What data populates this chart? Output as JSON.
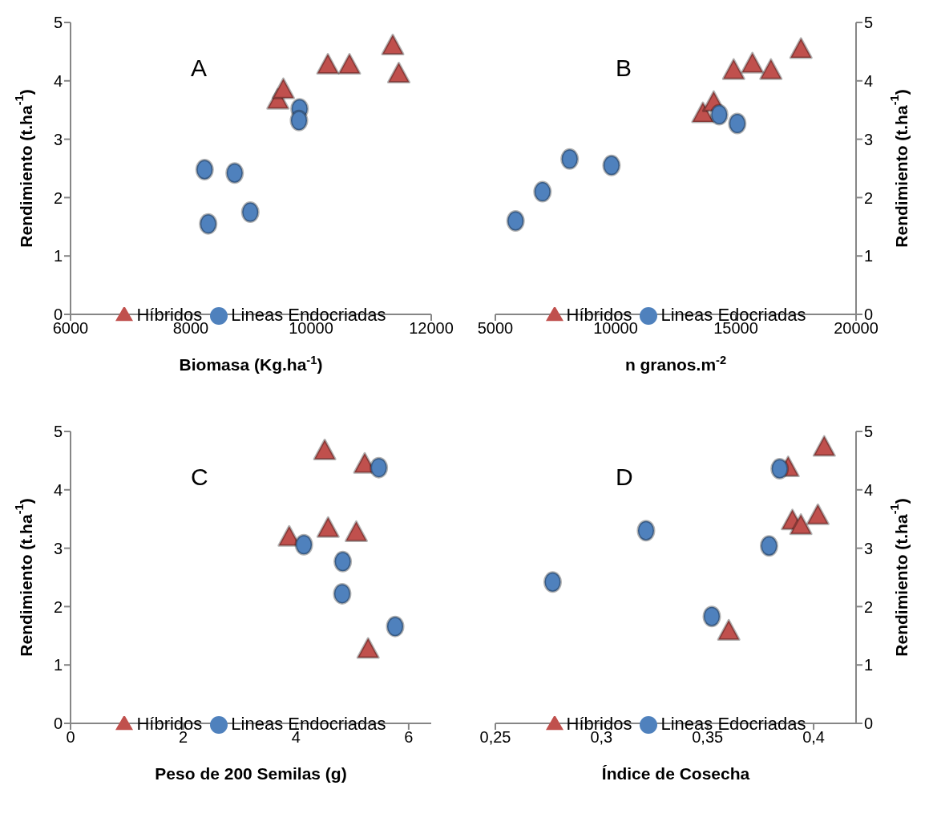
{
  "chart_data": [
    {
      "type": "scatter",
      "annotations": [
        "A"
      ],
      "xlabel": "Biomasa (Kg.ha$^{-1}$)",
      "ylabel": "Rendimiento (t.ha$^{-1}$)",
      "xlim": [
        6000,
        12000
      ],
      "xticks": [
        6000,
        8000,
        10000,
        12000
      ],
      "ylim": [
        0,
        5
      ],
      "yticks": [
        0,
        1,
        2,
        3,
        4,
        5
      ],
      "legend": "bottom",
      "series": [
        {
          "name": "Híbridos",
          "color": "#c0504d",
          "marker": "triangle",
          "x": [
            9450,
            9540,
            10280,
            10640,
            11360,
            11460
          ],
          "values": [
            3.65,
            3.83,
            4.25,
            4.25,
            4.58,
            4.1
          ]
        },
        {
          "name": "Lineas Endocriadas",
          "color": "#4f81bd",
          "marker": "circle",
          "x": [
            8230,
            8730,
            8290,
            8990,
            9810,
            9800
          ],
          "values": [
            2.48,
            2.42,
            1.55,
            1.75,
            3.52,
            3.32
          ]
        }
      ]
    },
    {
      "type": "scatter",
      "annotations": [
        "B"
      ],
      "xlabel": "n granos.m$^{-2}$",
      "y2label": "Rendimiento (t.ha$^{-1}$)",
      "xlim": [
        5000,
        20000
      ],
      "xticks": [
        5000,
        10000,
        15000,
        20000
      ],
      "y2lim": [
        0,
        5
      ],
      "y2ticks": [
        0,
        1,
        2,
        3,
        4,
        5
      ],
      "legend": "bottom",
      "series": [
        {
          "name": "Híbridos",
          "color": "#c0504d",
          "marker": "triangle",
          "axis": "y2",
          "x": [
            13630,
            14080,
            14910,
            15690,
            16460,
            17710
          ],
          "values": [
            3.42,
            3.61,
            4.16,
            4.27,
            4.16,
            4.52
          ]
        },
        {
          "name": "Lineas Edocriadas",
          "color": "#4f81bd",
          "marker": "circle",
          "axis": "y2",
          "x": [
            5840,
            6960,
            8090,
            9830,
            14310,
            15060
          ],
          "values": [
            1.6,
            2.1,
            2.66,
            2.55,
            3.42,
            3.27
          ]
        }
      ]
    },
    {
      "type": "scatter",
      "annotations": [
        "C"
      ],
      "xlabel": "Peso de 200 Semilas (g)",
      "ylabel": "Rendimiento (t.ha$^{-1}$)",
      "xlim": [
        0,
        6.4
      ],
      "xticks": [
        0,
        2,
        4,
        6
      ],
      "ylim": [
        0,
        5
      ],
      "yticks": [
        0,
        1,
        2,
        3,
        4,
        5
      ],
      "legend": "bottom",
      "series": [
        {
          "name": "Híbridos",
          "color": "#c0504d",
          "marker": "triangle",
          "x": [
            4.51,
            5.22,
            3.88,
            4.57,
            5.07,
            5.28
          ],
          "values": [
            4.65,
            4.42,
            3.17,
            3.32,
            3.25,
            1.25
          ]
        },
        {
          "name": "Lineas Endocriadas",
          "color": "#4f81bd",
          "marker": "circle",
          "x": [
            5.47,
            4.14,
            4.83,
            4.82,
            5.76
          ],
          "values": [
            4.38,
            3.06,
            2.77,
            2.22,
            1.66
          ]
        }
      ]
    },
    {
      "type": "scatter",
      "annotations": [
        "D"
      ],
      "xlabel": "Índice de Cosecha",
      "y2label": "Rendimiento (t.ha$^{-1}$)",
      "xlim": [
        0.25,
        0.42
      ],
      "xticks": [
        {
          "value": 0.25,
          "label": "0,25"
        },
        {
          "value": 0.3,
          "label": "0,3"
        },
        {
          "value": 0.35,
          "label": "0,35"
        },
        {
          "value": 0.4,
          "label": "0,4"
        }
      ],
      "y2lim": [
        0,
        5
      ],
      "y2ticks": [
        0,
        1,
        2,
        3,
        4,
        5
      ],
      "legend": "bottom",
      "series": [
        {
          "name": "Híbridos",
          "color": "#c0504d",
          "marker": "triangle",
          "axis": "y2",
          "x": [
            0.388,
            0.405,
            0.39,
            0.394,
            0.402,
            0.36
          ],
          "values": [
            4.36,
            4.71,
            3.45,
            3.37,
            3.54,
            1.56
          ]
        },
        {
          "name": "Lineas Edocriadas",
          "color": "#4f81bd",
          "marker": "circle",
          "axis": "y2",
          "x": [
            0.384,
            0.321,
            0.277,
            0.352,
            0.379
          ],
          "values": [
            4.36,
            3.3,
            2.42,
            1.83,
            3.04
          ]
        }
      ]
    }
  ]
}
